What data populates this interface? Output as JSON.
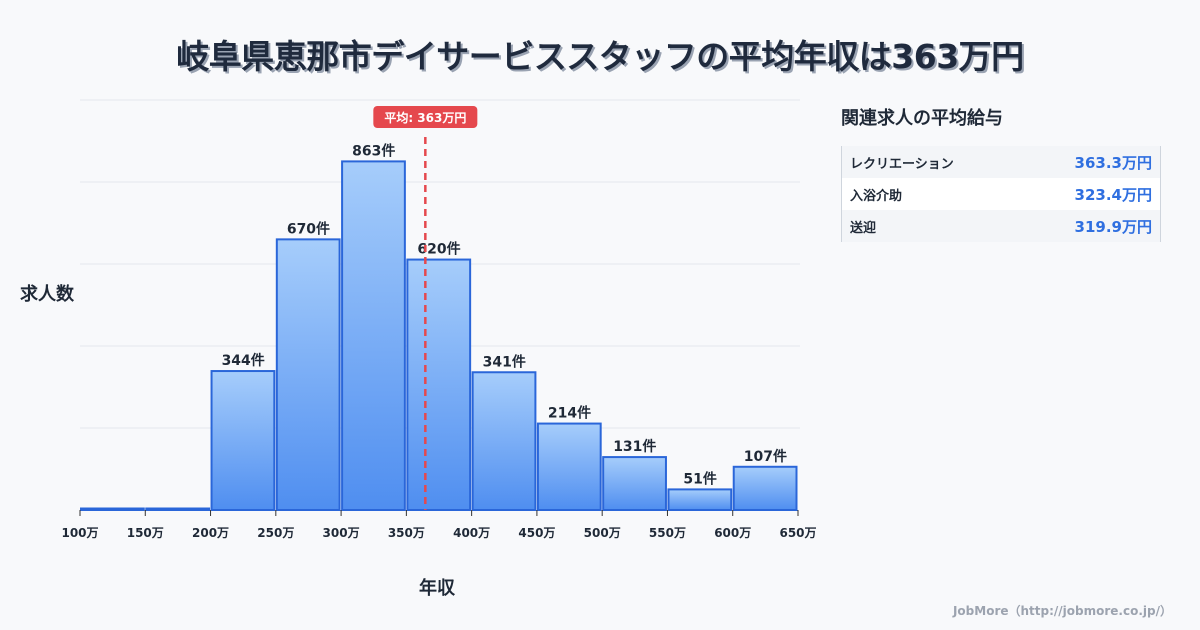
{
  "title": "岐阜県恵那市デイサービススタッフの平均年収は363万円",
  "y_axis_label": "求人数",
  "x_axis_label": "年収",
  "mean_marker": {
    "label": "平均: 363万円",
    "value": 363,
    "color": "#e5484d"
  },
  "colors": {
    "bar_fill_top": "#a6cdfb",
    "bar_fill_bottom": "#4f8ef0",
    "bar_stroke": "#2a66d9",
    "grid": "#e3e6ec",
    "mean_line": "#e5484d"
  },
  "side_panel": {
    "title": "関連求人の平均給与",
    "rows": [
      {
        "name": "レクリエーション",
        "value": "363.3万円"
      },
      {
        "name": "入浴介助",
        "value": "323.4万円"
      },
      {
        "name": "送迎",
        "value": "319.9万円"
      }
    ]
  },
  "footer": "JobMore（http://jobmore.co.jp/）",
  "chart_data": {
    "type": "bar",
    "title": "岐阜県恵那市デイサービススタッフの平均年収は363万円",
    "xlabel": "年収",
    "ylabel": "求人数",
    "categories": [
      "100-150万",
      "150-200万",
      "200-250万",
      "250-300万",
      "300-350万",
      "350-400万",
      "400-450万",
      "450-500万",
      "500-550万",
      "550-600万",
      "600-650万"
    ],
    "x_ticks": [
      "100万",
      "150万",
      "200万",
      "250万",
      "300万",
      "350万",
      "400万",
      "450万",
      "500万",
      "550万",
      "600万",
      "650万"
    ],
    "values": [
      0,
      0,
      344,
      670,
      863,
      620,
      341,
      214,
      131,
      51,
      107
    ],
    "value_labels": [
      "",
      "",
      "344件",
      "670件",
      "863件",
      "620件",
      "341件",
      "214件",
      "131件",
      "51件",
      "107件"
    ],
    "mean": 363,
    "mean_label": "平均: 363万円",
    "ylim": [
      0,
      1015
    ],
    "grid": true,
    "y_tick_labels_visible": false,
    "legend": "none"
  }
}
